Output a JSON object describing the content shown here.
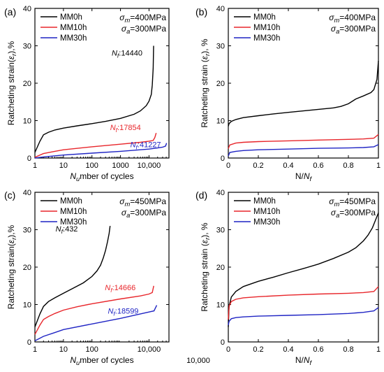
{
  "colors": {
    "MM0h": "#000000",
    "MM10h": "#e8262b",
    "MM30h": "#1f24c4"
  },
  "chart_data": [
    {
      "panel": "(a)",
      "type": "line",
      "xscale": "log",
      "xlim": [
        1,
        50000
      ],
      "ylim": [
        0,
        40
      ],
      "yticks": [
        0,
        10,
        20,
        30,
        40
      ],
      "xticks": [
        1,
        10,
        100,
        1000,
        10000
      ],
      "xtick_labels": [
        "1",
        "10",
        "100",
        "1000",
        "10,000"
      ],
      "xlabel": "Number of cycles",
      "ylabel": "Ratcheting strain(εr),%",
      "conditions": [
        "σm=400MPa",
        "σa=300MPa"
      ],
      "series": [
        {
          "name": "MM0h",
          "color_key": "MM0h",
          "x": [
            1,
            1.5,
            2,
            3,
            5,
            10,
            30,
            100,
            300,
            1000,
            3000,
            5000,
            8000,
            10000,
            12000,
            13000,
            14000,
            14440
          ],
          "y": [
            1.5,
            4.5,
            6.2,
            6.9,
            7.5,
            8.0,
            8.6,
            9.2,
            9.8,
            10.6,
            11.7,
            12.6,
            14.0,
            15.2,
            17.0,
            19.5,
            24.0,
            30.0
          ]
        },
        {
          "name": "MM10h",
          "color_key": "MM10h",
          "x": [
            1,
            2,
            5,
            10,
            100,
            1000,
            5000,
            10000,
            14000,
            16000,
            17854
          ],
          "y": [
            0.2,
            1.2,
            1.8,
            2.2,
            3.0,
            3.7,
            4.2,
            4.5,
            4.7,
            5.5,
            6.7
          ]
        },
        {
          "name": "MM30h",
          "color_key": "MM30h",
          "x": [
            1,
            2,
            10,
            100,
            1000,
            10000,
            20000,
            30000,
            38000,
            41227
          ],
          "y": [
            0.0,
            0.3,
            0.8,
            1.3,
            1.8,
            2.4,
            2.7,
            2.9,
            3.2,
            4.0
          ]
        }
      ],
      "annotations": [
        {
          "text": "Nf:14440",
          "color_key": "MM0h",
          "x": 14440,
          "y": 30
        },
        {
          "text": "Nf:17854",
          "color_key": "MM10h",
          "x": 17854,
          "y": 6.7
        },
        {
          "text": "Nf:41227",
          "color_key": "MM30h",
          "x": 41227,
          "y": 4.0
        }
      ]
    },
    {
      "panel": "(b)",
      "type": "line",
      "xscale": "linear",
      "xlim": [
        0,
        1
      ],
      "ylim": [
        0,
        40
      ],
      "yticks": [
        0,
        10,
        20,
        30,
        40
      ],
      "xticks": [
        0,
        0.2,
        0.4,
        0.6,
        0.8,
        1
      ],
      "xtick_labels": [
        "0",
        "0.2",
        "0.4",
        "0.6",
        "0.8",
        "1"
      ],
      "xlabel": "N/Nf",
      "ylabel": "Ratcheting strain (εr), %",
      "conditions": [
        "σm=400MPa",
        "σa=300MPa"
      ],
      "series": [
        {
          "name": "MM0h",
          "color_key": "MM0h",
          "x": [
            0,
            0.005,
            0.02,
            0.05,
            0.1,
            0.2,
            0.3,
            0.4,
            0.5,
            0.6,
            0.7,
            0.75,
            0.8,
            0.85,
            0.9,
            0.95,
            0.97,
            0.99,
            1.0
          ],
          "y": [
            8.5,
            9.2,
            9.8,
            10.3,
            10.8,
            11.3,
            11.8,
            12.2,
            12.6,
            13.0,
            13.4,
            13.8,
            14.5,
            15.8,
            16.6,
            17.5,
            18.3,
            21.0,
            26.0
          ]
        },
        {
          "name": "MM10h",
          "color_key": "MM10h",
          "x": [
            0,
            0.01,
            0.05,
            0.1,
            0.2,
            0.4,
            0.6,
            0.8,
            0.9,
            0.97,
            1.0
          ],
          "y": [
            2.5,
            3.5,
            4.0,
            4.2,
            4.4,
            4.6,
            4.8,
            5.0,
            5.1,
            5.3,
            6.3
          ]
        },
        {
          "name": "MM30h",
          "color_key": "MM30h",
          "x": [
            0,
            0.01,
            0.05,
            0.1,
            0.2,
            0.4,
            0.6,
            0.8,
            0.9,
            0.97,
            1.0
          ],
          "y": [
            0.5,
            1.5,
            1.8,
            2.0,
            2.2,
            2.4,
            2.6,
            2.7,
            2.8,
            3.0,
            3.6
          ]
        }
      ]
    },
    {
      "panel": "(c)",
      "type": "line",
      "xscale": "log",
      "xlim": [
        1,
        50000
      ],
      "ylim": [
        0,
        40
      ],
      "yticks": [
        0,
        10,
        20,
        30,
        40
      ],
      "xticks": [
        1,
        10,
        100,
        10000
      ],
      "xtick_labels": [
        "1",
        "10",
        "100",
        "10,000"
      ],
      "extra_xlabels": [
        "1000",
        "10,000"
      ],
      "xlabel": "Number of cycles",
      "ylabel": "Ratcheting strain(εr),%",
      "conditions": [
        "σm=450MPa",
        "σa=300MPa"
      ],
      "series": [
        {
          "name": "MM0h",
          "color_key": "MM0h",
          "x": [
            1,
            1.5,
            2,
            3,
            5,
            10,
            20,
            50,
            100,
            150,
            200,
            250,
            300,
            350,
            400,
            432
          ],
          "y": [
            4.0,
            7.5,
            9.5,
            10.8,
            11.8,
            13.0,
            14.2,
            15.8,
            17.5,
            19.0,
            20.5,
            22.5,
            24.5,
            26.8,
            29.0,
            31.0
          ]
        },
        {
          "name": "MM10h",
          "color_key": "MM10h",
          "x": [
            1,
            1.5,
            2,
            3,
            5,
            10,
            30,
            100,
            1000,
            5000,
            10000,
            13000,
            14666
          ],
          "y": [
            2.0,
            4.5,
            6.0,
            6.8,
            7.6,
            8.5,
            9.4,
            10.2,
            11.5,
            12.3,
            12.8,
            13.2,
            15.0
          ]
        },
        {
          "name": "MM30h",
          "color_key": "MM30h",
          "x": [
            1,
            2,
            5,
            10,
            100,
            1000,
            5000,
            10000,
            15000,
            18599
          ],
          "y": [
            0.3,
            1.5,
            2.5,
            3.3,
            4.8,
            6.3,
            7.5,
            8.0,
            8.3,
            9.8
          ]
        }
      ],
      "annotations": [
        {
          "text": "Nf:432",
          "color_key": "MM0h",
          "x": 432,
          "y": 31
        },
        {
          "text": "Nf:14666",
          "color_key": "MM10h",
          "x": 14666,
          "y": 15
        },
        {
          "text": "Nf:18599",
          "color_key": "MM30h",
          "x": 18599,
          "y": 9.8
        }
      ]
    },
    {
      "panel": "(d)",
      "type": "line",
      "xscale": "linear",
      "xlim": [
        0,
        1
      ],
      "ylim": [
        0,
        40
      ],
      "yticks": [
        0,
        10,
        20,
        30,
        40
      ],
      "xticks": [
        0,
        0.2,
        0.4,
        0.6,
        0.8,
        1
      ],
      "xtick_labels": [
        "0",
        "0.2",
        "0.4",
        "0.6",
        "0.8",
        "1"
      ],
      "xlabel": "N/Nf",
      "ylabel": "Ratcheting strain (εr), %",
      "conditions": [
        "σm=450MPa",
        "σa=300MPa"
      ],
      "series": [
        {
          "name": "MM0h",
          "color_key": "MM0h",
          "x": [
            0,
            0.005,
            0.02,
            0.05,
            0.1,
            0.2,
            0.3,
            0.4,
            0.5,
            0.6,
            0.7,
            0.8,
            0.85,
            0.9,
            0.93,
            0.96,
            0.98,
            1.0
          ],
          "y": [
            4.0,
            9.5,
            12.0,
            13.5,
            14.8,
            16.2,
            17.3,
            18.5,
            19.6,
            20.8,
            22.3,
            24.0,
            25.2,
            27.0,
            28.5,
            30.5,
            32.5,
            34.5
          ]
        },
        {
          "name": "MM10h",
          "color_key": "MM10h",
          "x": [
            0,
            0.005,
            0.02,
            0.05,
            0.1,
            0.2,
            0.4,
            0.6,
            0.8,
            0.9,
            0.97,
            1.0
          ],
          "y": [
            6.0,
            9.5,
            10.8,
            11.4,
            11.8,
            12.1,
            12.5,
            12.8,
            13.0,
            13.2,
            13.5,
            14.8
          ]
        },
        {
          "name": "MM30h",
          "color_key": "MM30h",
          "x": [
            0,
            0.005,
            0.02,
            0.05,
            0.1,
            0.2,
            0.4,
            0.6,
            0.8,
            0.9,
            0.97,
            1.0
          ],
          "y": [
            4.5,
            5.5,
            6.2,
            6.5,
            6.7,
            6.9,
            7.1,
            7.3,
            7.6,
            7.9,
            8.3,
            9.2
          ]
        }
      ]
    }
  ]
}
